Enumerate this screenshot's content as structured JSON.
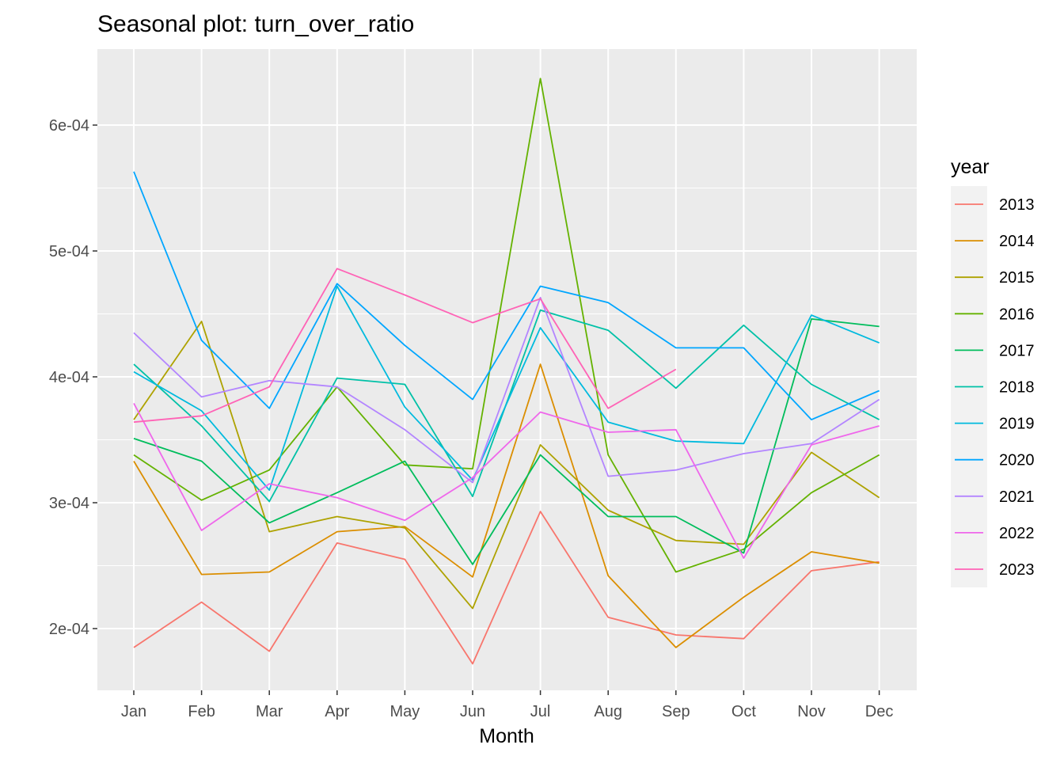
{
  "chart_data": {
    "type": "line",
    "title": "Seasonal plot: turn_over_ratio",
    "xlabel": "Month",
    "ylabel": "",
    "categories": [
      "Jan",
      "Feb",
      "Mar",
      "Apr",
      "May",
      "Jun",
      "Jul",
      "Aug",
      "Sep",
      "Oct",
      "Nov",
      "Dec"
    ],
    "ylim": [
      0.00015,
      0.00065
    ],
    "yticks": [
      0.0002,
      0.0003,
      0.0004,
      0.0005,
      0.0006
    ],
    "ytick_labels": [
      "2e-04",
      "3e-04",
      "4e-04",
      "5e-04",
      "6e-04"
    ],
    "grid": true,
    "legend_title": "year",
    "legend_position": "right",
    "series": [
      {
        "name": "2013",
        "color": "#F8766D",
        "values": [
          0.000185,
          0.000221,
          0.000182,
          0.000268,
          0.000255,
          0.000172,
          0.000293,
          0.000209,
          0.000195,
          0.000192,
          0.000246,
          0.000253
        ]
      },
      {
        "name": "2014",
        "color": "#DB8E00",
        "values": [
          0.000333,
          0.000243,
          0.000245,
          0.000277,
          0.000281,
          0.000241,
          0.00041,
          0.000242,
          0.000185,
          0.000225,
          0.000261,
          0.000252
        ]
      },
      {
        "name": "2015",
        "color": "#AEA200",
        "values": [
          0.000366,
          0.000444,
          0.000277,
          0.000289,
          0.00028,
          0.000216,
          0.000346,
          0.000294,
          0.00027,
          0.000267,
          0.00034,
          0.000304
        ]
      },
      {
        "name": "2016",
        "color": "#64B200",
        "values": [
          0.000338,
          0.000302,
          0.000326,
          0.000392,
          0.00033,
          0.000327,
          0.000637,
          0.000338,
          0.000245,
          0.000263,
          0.000308,
          0.000338
        ]
      },
      {
        "name": "2017",
        "color": "#00BD5C",
        "values": [
          0.000351,
          0.000333,
          0.000284,
          0.000308,
          0.000333,
          0.000251,
          0.000338,
          0.000289,
          0.000289,
          0.00026,
          0.000446,
          0.00044
        ]
      },
      {
        "name": "2018",
        "color": "#00C1A7",
        "values": [
          0.00041,
          0.000361,
          0.000301,
          0.000399,
          0.000394,
          0.000305,
          0.000453,
          0.000437,
          0.000391,
          0.000441,
          0.000394,
          0.000366
        ]
      },
      {
        "name": "2019",
        "color": "#00BADE",
        "values": [
          0.000404,
          0.000373,
          0.00031,
          0.000472,
          0.000376,
          0.000318,
          0.000439,
          0.000364,
          0.000349,
          0.000347,
          0.000449,
          0.000427
        ]
      },
      {
        "name": "2020",
        "color": "#00A6FF",
        "values": [
          0.000563,
          0.000429,
          0.000375,
          0.000474,
          0.000425,
          0.000382,
          0.000472,
          0.000459,
          0.000423,
          0.000423,
          0.000366,
          0.000389
        ]
      },
      {
        "name": "2021",
        "color": "#B385FF",
        "values": [
          0.000435,
          0.000384,
          0.000397,
          0.000392,
          0.000358,
          0.000316,
          0.000463,
          0.000321,
          0.000326,
          0.000339,
          0.000347,
          0.000382
        ]
      },
      {
        "name": "2022",
        "color": "#EF67EB",
        "values": [
          0.000379,
          0.000278,
          0.000315,
          0.000304,
          0.000286,
          0.00032,
          0.000372,
          0.000356,
          0.000358,
          0.000256,
          0.000346,
          0.000361
        ]
      },
      {
        "name": "2023",
        "color": "#FF63B6",
        "values": [
          0.000364,
          0.000369,
          0.000392,
          0.000486,
          0.000465,
          0.000443,
          0.000462,
          0.000375,
          0.000406,
          null,
          null,
          null
        ]
      }
    ]
  }
}
